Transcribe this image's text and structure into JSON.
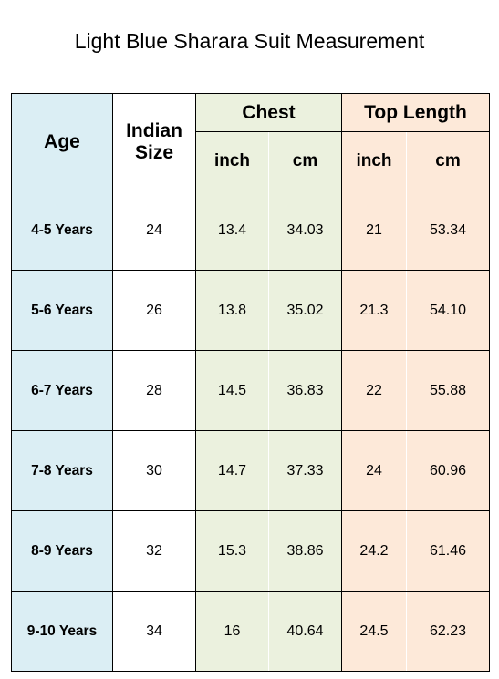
{
  "title": "Light Blue Sharara Suit Measurement",
  "headers": {
    "age": "Age",
    "indian_size": "Indian Size",
    "chest": "Chest",
    "top_length": "Top Length",
    "inch": "inch",
    "cm": "cm"
  },
  "rows": [
    {
      "age": "4-5 Years",
      "size": "24",
      "chest_inch": "13.4",
      "chest_cm": "34.03",
      "top_inch": "21",
      "top_cm": "53.34"
    },
    {
      "age": "5-6 Years",
      "size": "26",
      "chest_inch": "13.8",
      "chest_cm": "35.02",
      "top_inch": "21.3",
      "top_cm": "54.10"
    },
    {
      "age": "6-7 Years",
      "size": "28",
      "chest_inch": "14.5",
      "chest_cm": "36.83",
      "top_inch": "22",
      "top_cm": "55.88"
    },
    {
      "age": "7-8 Years",
      "size": "30",
      "chest_inch": "14.7",
      "chest_cm": "37.33",
      "top_inch": "24",
      "top_cm": "60.96"
    },
    {
      "age": "8-9 Years",
      "size": "32",
      "chest_inch": "15.3",
      "chest_cm": "38.86",
      "top_inch": "24.2",
      "top_cm": "61.46"
    },
    {
      "age": "9-10 Years",
      "size": "34",
      "chest_inch": "16",
      "chest_cm": "40.64",
      "top_inch": "24.5",
      "top_cm": "62.23"
    }
  ],
  "colors": {
    "age_col": "#dbeef4",
    "chest_group": "#ebf1de",
    "top_length_group": "#fde9d9"
  }
}
